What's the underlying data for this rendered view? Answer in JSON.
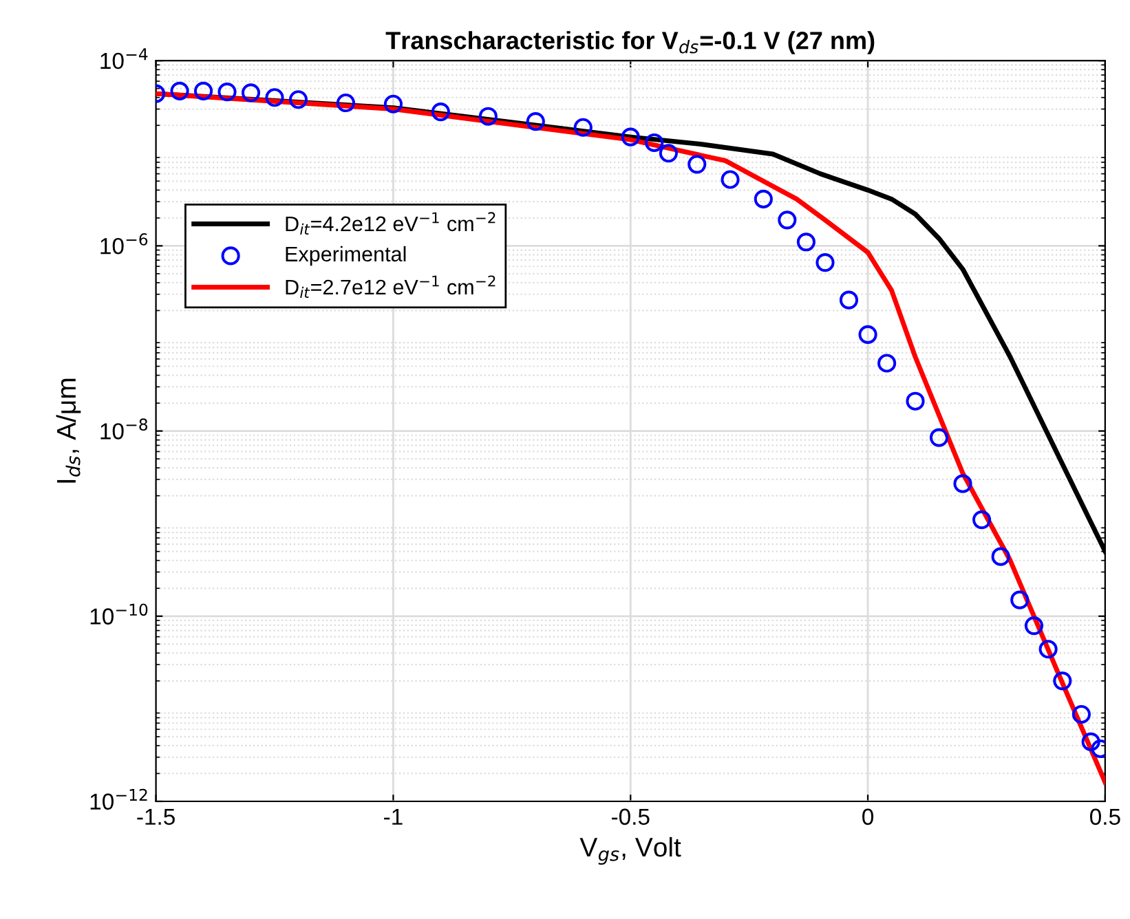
{
  "chart_data": {
    "type": "line",
    "title": "Transcharacteristic for V$_{ds}$=-0.1 V (27 nm)",
    "xlabel": "V$_{gs}$, Volt",
    "ylabel": "I$_{ds}$, A/μm",
    "log": "y",
    "grid": true,
    "legend": "top left",
    "xlim": [
      -1.5,
      0.5
    ],
    "xticks": [
      -1.5,
      -1,
      -0.5,
      0,
      0.5
    ],
    "ylim": [
      1e-12,
      0.0001
    ],
    "yticks": [
      {
        "value": 1e-12,
        "label": "10$^{−12}$"
      },
      {
        "value": 1e-10,
        "label": "10$^{−10}$"
      },
      {
        "value": 1e-08,
        "label": "10$^{−8}$"
      },
      {
        "value": 1e-06,
        "label": "10$^{−6}$"
      },
      {
        "value": 0.0001,
        "label": "10$^{−4}$"
      }
    ],
    "series": [
      {
        "name": "D$_{it}$=4.2e12 eV$^{−1}$ cm$^{−2}$",
        "color": "#000000",
        "marker": "none",
        "line_style": "solid",
        "x": [
          -1.5,
          -1.0,
          -0.5,
          -0.35,
          -0.2,
          -0.1,
          0,
          0.05,
          0.1,
          0.15,
          0.2,
          0.3,
          0.4,
          0.5
        ],
        "values": [
          4.4e-05,
          3.1e-05,
          1.5e-05,
          1.25e-05,
          9.8e-06,
          6e-06,
          4e-06,
          3.2e-06,
          2.2e-06,
          1.2e-06,
          5.6e-07,
          6.3e-08,
          5.6e-09,
          5e-10
        ]
      },
      {
        "name": "Experimental",
        "type": "scatter",
        "color": "#0000ff",
        "marker": "circle",
        "x": [
          -1.5,
          -1.45,
          -1.4,
          -1.35,
          -1.3,
          -1.25,
          -1.2,
          -1.1,
          -1.0,
          -0.9,
          -0.8,
          -0.7,
          -0.6,
          -0.5,
          -0.45,
          -0.42,
          -0.36,
          -0.29,
          -0.22,
          -0.17,
          -0.13,
          -0.09,
          -0.04,
          0.0,
          0.04,
          0.1,
          0.15,
          0.2,
          0.24,
          0.28,
          0.32,
          0.35,
          0.38,
          0.41,
          0.45,
          0.47,
          0.49
        ],
        "values": [
          4.4e-05,
          4.7e-05,
          4.7e-05,
          4.6e-05,
          4.5e-05,
          4e-05,
          3.8e-05,
          3.5e-05,
          3.4e-05,
          2.8e-05,
          2.5e-05,
          2.2e-05,
          1.9e-05,
          1.5e-05,
          1.3e-05,
          1e-05,
          7.6e-06,
          5.2e-06,
          3.2e-06,
          1.9e-06,
          1.1e-06,
          6.6e-07,
          2.6e-07,
          1.1e-07,
          5.4e-08,
          2.1e-08,
          8.5e-09,
          2.7e-09,
          1.1e-09,
          4.4e-10,
          1.5e-10,
          7.9e-11,
          4.4e-11,
          2e-11,
          8.7e-12,
          4.4e-12,
          3.7e-12
        ]
      },
      {
        "name": "D$_{it}$=2.7e12 eV$^{−1}$ cm$^{−2}$",
        "color": "#ff0000",
        "marker": "none",
        "line_style": "solid",
        "x": [
          -1.5,
          -1.0,
          -0.5,
          -0.3,
          -0.15,
          -0.09,
          0,
          0.05,
          0.1,
          0.2,
          0.3,
          0.4,
          0.5
        ],
        "values": [
          4.4e-05,
          3e-05,
          1.4e-05,
          8.3e-06,
          3.2e-06,
          1.9e-06,
          8.5e-07,
          3.3e-07,
          6.3e-08,
          3.5e-09,
          4e-10,
          2.5e-11,
          1.6e-12
        ]
      }
    ]
  }
}
